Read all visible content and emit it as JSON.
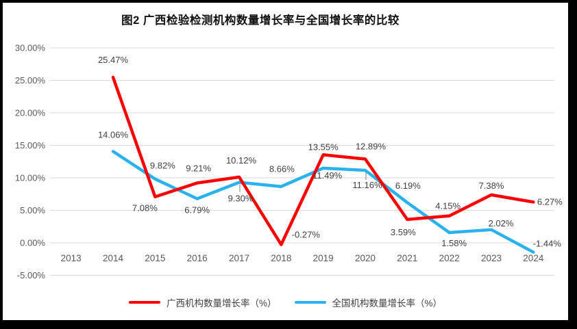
{
  "window": {
    "background": "#FFFFFF",
    "frame_color": "#000000"
  },
  "chart_data": {
    "type": "line",
    "title": "图2 广西检验检测机构数量增长率与全国增长率的比较",
    "categories": [
      "2013",
      "2014",
      "2015",
      "2016",
      "2017",
      "2018",
      "2019",
      "2020",
      "2021",
      "2022",
      "2023",
      "2024"
    ],
    "series": [
      {
        "name": "广西机构数量增长率（%）",
        "color": "#FE0000",
        "values": [
          null,
          25.47,
          7.08,
          9.21,
          10.12,
          -0.27,
          13.55,
          12.89,
          3.59,
          4.15,
          7.38,
          6.27
        ],
        "labels": [
          null,
          "25.47%",
          "7.08%",
          "9.21%",
          "10.12%",
          "-0.27%",
          "13.55%",
          "12.89%",
          "3.59%",
          "4.15%",
          "7.38%",
          "6.27%"
        ],
        "label_offsets": [
          null,
          [
            0,
            -21
          ],
          [
            -15,
            21
          ],
          [
            2,
            -17
          ],
          [
            3,
            -20
          ],
          [
            36,
            -10
          ],
          [
            0,
            -7
          ],
          [
            8,
            -14
          ],
          [
            -6,
            23
          ],
          [
            -2,
            -10
          ],
          [
            0,
            -9
          ],
          [
            24,
            4
          ]
        ],
        "leader_indices": []
      },
      {
        "name": "全国机构数量增长率（%）",
        "color": "#29B2EE",
        "values": [
          null,
          14.06,
          9.82,
          6.79,
          9.3,
          8.66,
          11.49,
          11.16,
          6.19,
          1.58,
          2.02,
          -1.44
        ],
        "labels": [
          null,
          "14.06%",
          "9.82%",
          "6.79%",
          "9.30%",
          "8.66%",
          "11.49%",
          "11.16%",
          "6.19%",
          "1.58%",
          "2.02%",
          "-1.44%"
        ],
        "label_offsets": [
          null,
          [
            0,
            -20
          ],
          [
            11,
            -15
          ],
          [
            0,
            21
          ],
          [
            2,
            28
          ],
          [
            1,
            -21
          ],
          [
            6,
            15
          ],
          [
            3,
            26
          ],
          [
            1,
            -20
          ],
          [
            7,
            20
          ],
          [
            14,
            -5
          ],
          [
            20,
            -8
          ]
        ],
        "leader_indices": [
          4,
          7
        ]
      }
    ],
    "y_axis": {
      "min": -5,
      "max": 30,
      "step": 5,
      "tick_labels": [
        "30.00%",
        "25.00%",
        "20.00%",
        "15.00%",
        "10.00%",
        "5.00%",
        "0.00%",
        "-5.00%"
      ]
    },
    "grid": true,
    "legend_position": "bottom",
    "colors": {
      "gridline": "#D9D9D9",
      "axis_text": "#595959",
      "data_label_text": "#404040",
      "leader_line": "#A6A6A6"
    }
  }
}
